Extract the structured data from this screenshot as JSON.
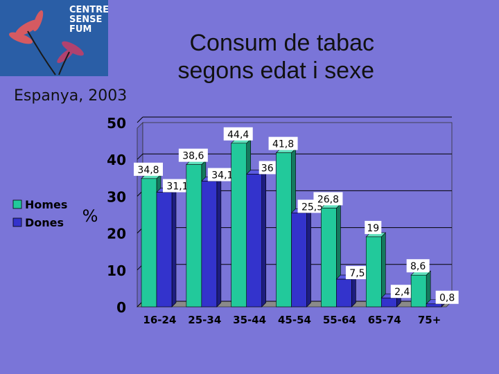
{
  "slide": {
    "title_line1": "Consum de tabac",
    "title_line2": "segons edat i sexe",
    "subtitle": "Espanya, 2003",
    "logo_lines": [
      "CENTRE",
      "SENSE",
      "FUM"
    ]
  },
  "colors": {
    "background": "#7a75d8",
    "homes": "#22c99b",
    "dones": "#3333cc",
    "plot_bg": "#7a75d8",
    "axis": "#000000"
  },
  "chart_data": {
    "type": "bar",
    "categories": [
      "16-24",
      "25-34",
      "35-44",
      "45-54",
      "55-64",
      "65-74",
      "75+"
    ],
    "series": [
      {
        "name": "Homes",
        "values": [
          "34,8",
          "38,6",
          "44,4",
          "41,8",
          "26,8",
          "19",
          "8,6"
        ],
        "numeric": [
          34.8,
          38.6,
          44.4,
          41.8,
          26.8,
          19,
          8.6
        ]
      },
      {
        "name": "Dones",
        "values": [
          "31,1",
          "34,1",
          "36",
          "25,5",
          "7,5",
          "2,4",
          "0,8"
        ],
        "numeric": [
          31.1,
          34.1,
          36,
          25.5,
          7.5,
          2.4,
          0.8
        ]
      }
    ],
    "ylabel": "%",
    "ylim": [
      0,
      50
    ],
    "yticks": [
      "0",
      "10",
      "20",
      "30",
      "40",
      "50"
    ],
    "legend_position": "left"
  }
}
